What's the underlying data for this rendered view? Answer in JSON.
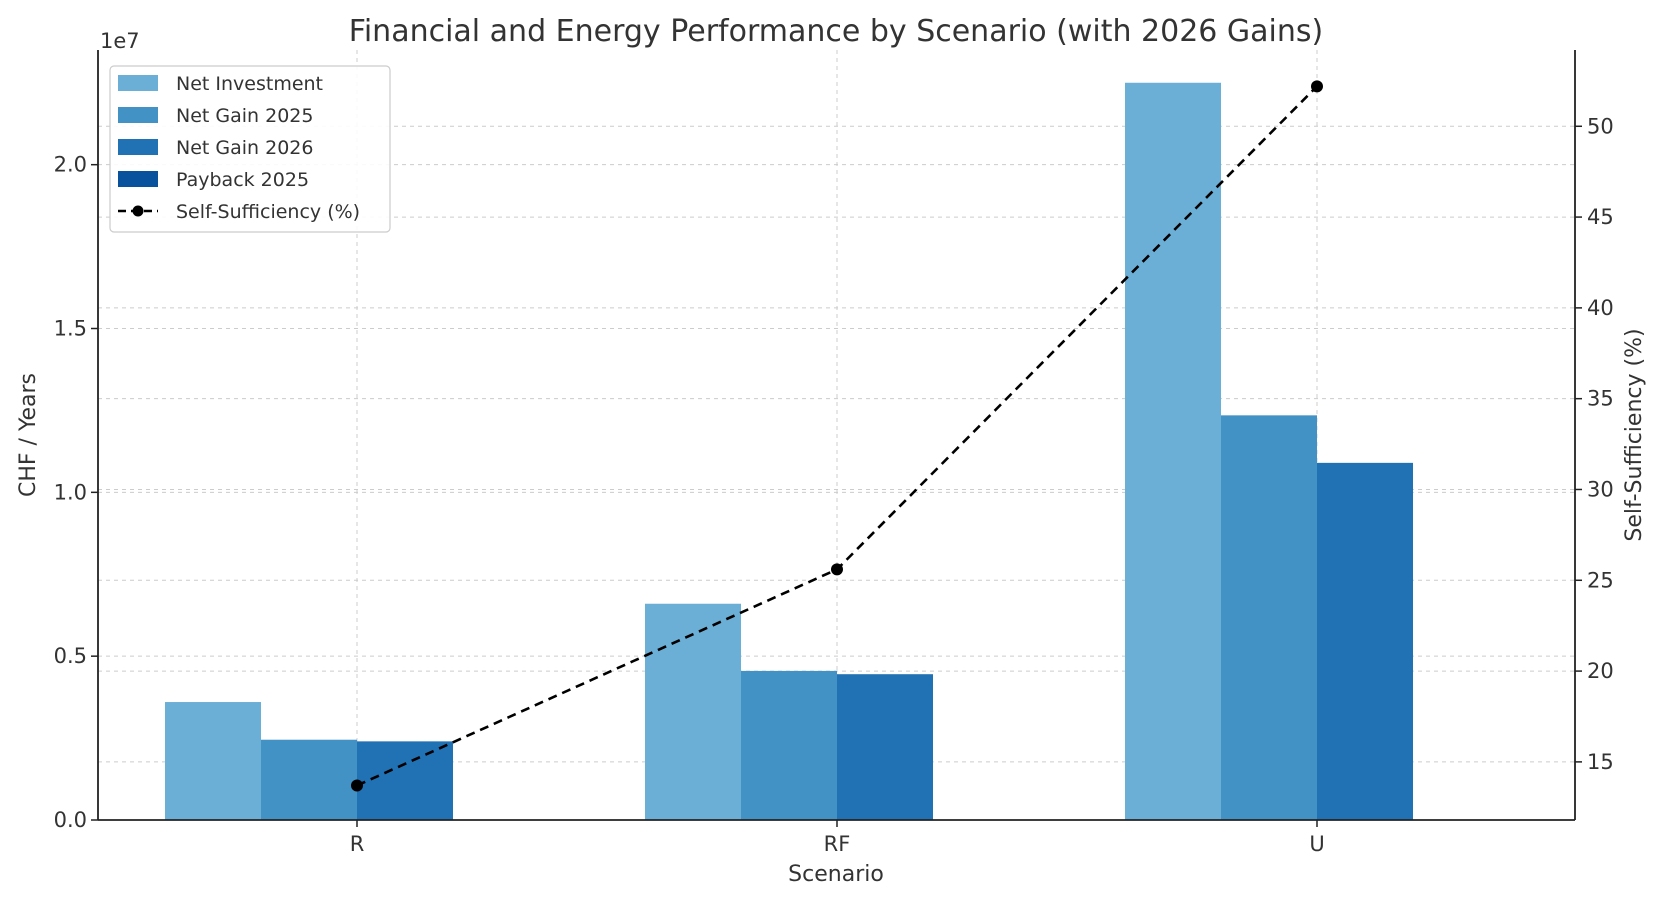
{
  "chart_data": {
    "type": "bar",
    "title": "Financial and Energy Performance by Scenario (with 2026 Gains)",
    "xlabel": "Scenario",
    "ylabel": "CHF / Years",
    "y2label": "Self-Sufficiency (%)",
    "offset_label": "1e7",
    "categories": [
      "R",
      "RF",
      "U"
    ],
    "ylim": [
      0,
      2.35
    ],
    "y_ticks": [
      "0.0",
      "0.5",
      "1.0",
      "1.5",
      "2.0"
    ],
    "y2lim": [
      11.8,
      54.2
    ],
    "y2_ticks": [
      "15",
      "20",
      "25",
      "30",
      "35",
      "40",
      "45",
      "50"
    ],
    "grid": true,
    "legend_position": "upper-left",
    "series": [
      {
        "name": "Net Investment",
        "color": "#6baed6",
        "values": [
          0.36,
          0.66,
          2.25
        ]
      },
      {
        "name": "Net Gain 2025",
        "color": "#4292c6",
        "values": [
          0.245,
          0.455,
          1.235
        ]
      },
      {
        "name": "Net Gain 2026",
        "color": "#2171b5",
        "values": [
          0.24,
          0.445,
          1.09
        ]
      },
      {
        "name": "Payback 2025",
        "color": "#08519c",
        "values": [
          0.0,
          0.0,
          0.0
        ]
      }
    ],
    "line_series": {
      "name": "Self-Sufficiency (%)",
      "color": "#000000",
      "axis": "right",
      "values": [
        13.7,
        25.6,
        52.2
      ]
    }
  }
}
